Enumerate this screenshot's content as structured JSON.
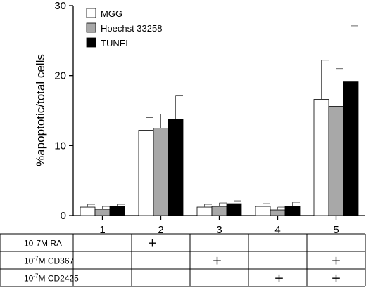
{
  "chart_data": {
    "type": "bar",
    "categories": [
      "1",
      "2",
      "3",
      "4",
      "5"
    ],
    "series": [
      {
        "name": "MGG",
        "color": "#ffffff",
        "values": [
          1.2,
          12.2,
          1.2,
          1.3,
          16.6
        ],
        "errors": [
          0.4,
          1.8,
          0.4,
          0.4,
          5.6
        ]
      },
      {
        "name": "Hoechst 33258",
        "color": "#a8a8a8",
        "values": [
          0.9,
          12.5,
          1.3,
          0.8,
          15.6
        ],
        "errors": [
          0.4,
          2.0,
          0.5,
          0.4,
          5.4
        ]
      },
      {
        "name": "TUNEL",
        "color": "#000000",
        "values": [
          1.3,
          13.8,
          1.7,
          1.3,
          19.1
        ],
        "errors": [
          0.3,
          3.3,
          0.4,
          0.6,
          8.0
        ]
      }
    ],
    "yticks": [
      "0",
      "10",
      "20",
      "30"
    ],
    "ylim": [
      0,
      30
    ],
    "ylabel": "%apoptotic/total cells",
    "xlabel": "",
    "title": "",
    "legend_position": "top-left",
    "treatment_table": {
      "rows": [
        {
          "label": "10-7M RA",
          "marks": [
            "",
            "+",
            "",
            "",
            ""
          ]
        },
        {
          "label_prefix": "10",
          "label_exp": "-7",
          "label_suffix": "M CD367",
          "marks": [
            "",
            "",
            "+",
            "",
            "+"
          ]
        },
        {
          "label_prefix": "10",
          "label_exp": "-7",
          "label_suffix": "M CD2425",
          "marks": [
            "",
            "",
            "",
            "+",
            "+"
          ]
        }
      ]
    }
  }
}
